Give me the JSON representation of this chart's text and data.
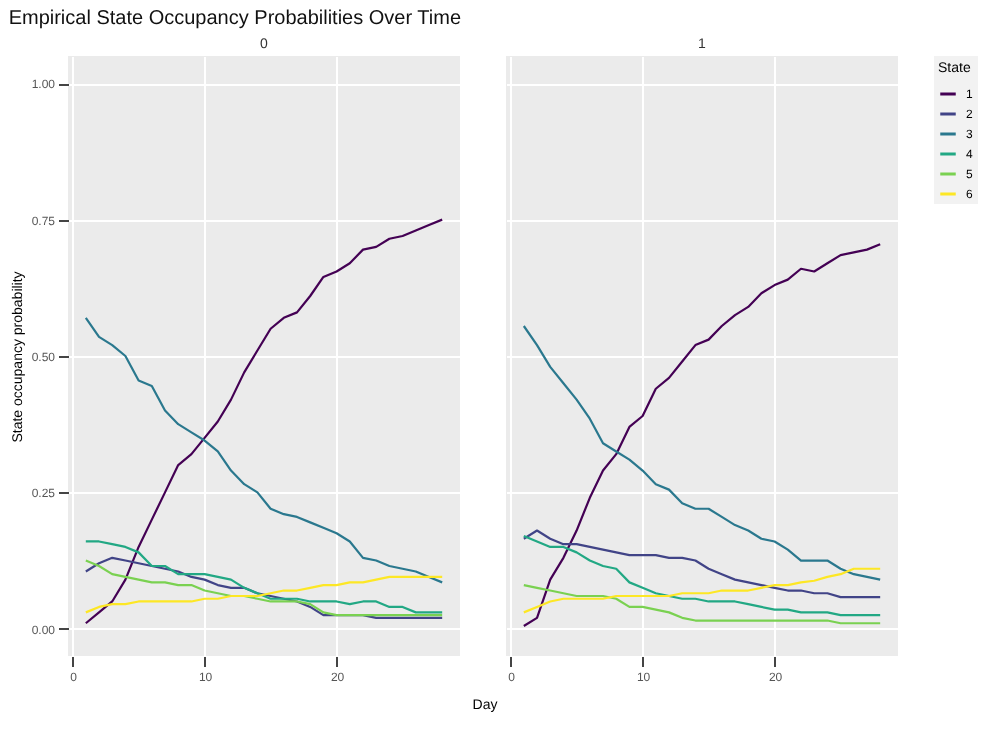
{
  "chart_data": [
    {
      "type": "line",
      "title": "Empirical State Occupancy Probabilities Over Time",
      "subtitle": "0",
      "xlabel": "Day",
      "ylabel": "State occupancy probability",
      "x": [
        1,
        2,
        3,
        4,
        5,
        6,
        7,
        8,
        9,
        10,
        11,
        12,
        13,
        14,
        15,
        16,
        17,
        18,
        19,
        20,
        21,
        22,
        23,
        24,
        25,
        26,
        27,
        28
      ],
      "xlim": [
        -0.35,
        29.35
      ],
      "xticks": [
        0,
        10,
        20
      ],
      "ylim": [
        -0.05,
        1.05
      ],
      "yticks": [
        {
          "value": 0,
          "label": "0.00"
        },
        {
          "value": 0.25,
          "label": "0.25"
        },
        {
          "value": 0.5,
          "label": "0.50"
        },
        {
          "value": 0.75,
          "label": "0.75"
        },
        {
          "value": 1,
          "label": "1.00"
        }
      ],
      "grid": true,
      "legend": false,
      "series": [
        {
          "color": "#440154",
          "values": [
            0.01,
            0.03,
            0.05,
            0.09,
            0.15,
            0.2,
            0.25,
            0.3,
            0.32,
            0.35,
            0.38,
            0.42,
            0.47,
            0.51,
            0.55,
            0.57,
            0.58,
            0.61,
            0.645,
            0.655,
            0.67,
            0.695,
            0.7,
            0.715,
            0.72,
            0.73,
            0.74,
            0.75
          ]
        },
        {
          "color": "#414487",
          "values": [
            0.105,
            0.12,
            0.13,
            0.125,
            0.12,
            0.115,
            0.11,
            0.105,
            0.095,
            0.09,
            0.08,
            0.075,
            0.075,
            0.065,
            0.06,
            0.055,
            0.05,
            0.04,
            0.025,
            0.025,
            0.025,
            0.025,
            0.02,
            0.02,
            0.02,
            0.02,
            0.02,
            0.02
          ]
        },
        {
          "color": "#2a788e",
          "values": [
            0.57,
            0.535,
            0.52,
            0.5,
            0.455,
            0.445,
            0.4,
            0.375,
            0.36,
            0.345,
            0.325,
            0.29,
            0.265,
            0.25,
            0.22,
            0.21,
            0.205,
            0.195,
            0.185,
            0.175,
            0.16,
            0.13,
            0.125,
            0.115,
            0.11,
            0.105,
            0.095,
            0.085
          ]
        },
        {
          "color": "#22a884",
          "values": [
            0.16,
            0.16,
            0.155,
            0.15,
            0.14,
            0.115,
            0.115,
            0.1,
            0.1,
            0.1,
            0.095,
            0.09,
            0.075,
            0.065,
            0.055,
            0.055,
            0.055,
            0.05,
            0.05,
            0.05,
            0.045,
            0.05,
            0.05,
            0.04,
            0.04,
            0.03,
            0.03,
            0.03
          ]
        },
        {
          "color": "#7ad151",
          "values": [
            0.125,
            0.115,
            0.1,
            0.095,
            0.09,
            0.085,
            0.085,
            0.08,
            0.08,
            0.07,
            0.065,
            0.06,
            0.06,
            0.055,
            0.05,
            0.05,
            0.05,
            0.045,
            0.03,
            0.025,
            0.025,
            0.025,
            0.025,
            0.025,
            0.025,
            0.025,
            0.025,
            0.025
          ]
        },
        {
          "color": "#fde725",
          "values": [
            0.03,
            0.04,
            0.045,
            0.045,
            0.05,
            0.05,
            0.05,
            0.05,
            0.05,
            0.055,
            0.055,
            0.06,
            0.06,
            0.06,
            0.065,
            0.07,
            0.07,
            0.075,
            0.08,
            0.08,
            0.085,
            0.085,
            0.09,
            0.095,
            0.095,
            0.095,
            0.095,
            0.095
          ]
        }
      ]
    },
    {
      "type": "line",
      "subtitle": "1",
      "legend_title": "State",
      "x": [
        1,
        2,
        3,
        4,
        5,
        6,
        7,
        8,
        9,
        10,
        11,
        12,
        13,
        14,
        15,
        16,
        17,
        18,
        19,
        20,
        21,
        22,
        23,
        24,
        25,
        26,
        27,
        28
      ],
      "xlim": [
        -0.35,
        29.35
      ],
      "xticks": [
        0,
        10,
        20
      ],
      "ylim": [
        -0.05,
        1.05
      ],
      "yticks": [
        0,
        0.25,
        0.5,
        0.75,
        1
      ],
      "tick_labels": "x",
      "grid": true,
      "legend": "right",
      "series": [
        {
          "name": "1",
          "color": "#440154",
          "values": [
            0.005,
            0.02,
            0.09,
            0.13,
            0.18,
            0.24,
            0.29,
            0.32,
            0.37,
            0.39,
            0.44,
            0.46,
            0.49,
            0.52,
            0.53,
            0.555,
            0.575,
            0.59,
            0.615,
            0.63,
            0.64,
            0.66,
            0.655,
            0.67,
            0.685,
            0.69,
            0.695,
            0.705
          ]
        },
        {
          "name": "2",
          "color": "#414487",
          "values": [
            0.165,
            0.18,
            0.165,
            0.155,
            0.155,
            0.15,
            0.145,
            0.14,
            0.135,
            0.135,
            0.135,
            0.13,
            0.13,
            0.125,
            0.11,
            0.1,
            0.09,
            0.085,
            0.08,
            0.075,
            0.07,
            0.07,
            0.065,
            0.065,
            0.058,
            0.058,
            0.058,
            0.058
          ]
        },
        {
          "name": "3",
          "color": "#2a788e",
          "values": [
            0.555,
            0.52,
            0.48,
            0.45,
            0.42,
            0.385,
            0.34,
            0.325,
            0.31,
            0.29,
            0.265,
            0.255,
            0.23,
            0.22,
            0.22,
            0.205,
            0.19,
            0.18,
            0.165,
            0.16,
            0.145,
            0.125,
            0.125,
            0.125,
            0.11,
            0.1,
            0.095,
            0.09
          ]
        },
        {
          "name": "4",
          "color": "#22a884",
          "values": [
            0.17,
            0.16,
            0.15,
            0.15,
            0.14,
            0.125,
            0.115,
            0.11,
            0.085,
            0.075,
            0.065,
            0.06,
            0.055,
            0.055,
            0.05,
            0.05,
            0.05,
            0.045,
            0.04,
            0.035,
            0.035,
            0.03,
            0.03,
            0.03,
            0.025,
            0.025,
            0.025,
            0.025
          ]
        },
        {
          "name": "5",
          "color": "#7ad151",
          "values": [
            0.08,
            0.075,
            0.07,
            0.065,
            0.06,
            0.06,
            0.06,
            0.055,
            0.04,
            0.04,
            0.035,
            0.03,
            0.02,
            0.015,
            0.015,
            0.015,
            0.015,
            0.015,
            0.015,
            0.015,
            0.015,
            0.015,
            0.015,
            0.015,
            0.01,
            0.01,
            0.01,
            0.01
          ]
        },
        {
          "name": "6",
          "color": "#fde725",
          "values": [
            0.03,
            0.04,
            0.05,
            0.055,
            0.055,
            0.055,
            0.055,
            0.06,
            0.06,
            0.06,
            0.06,
            0.06,
            0.065,
            0.065,
            0.065,
            0.07,
            0.07,
            0.07,
            0.075,
            0.08,
            0.08,
            0.085,
            0.088,
            0.095,
            0.1,
            0.11,
            0.11,
            0.11
          ]
        }
      ]
    }
  ]
}
